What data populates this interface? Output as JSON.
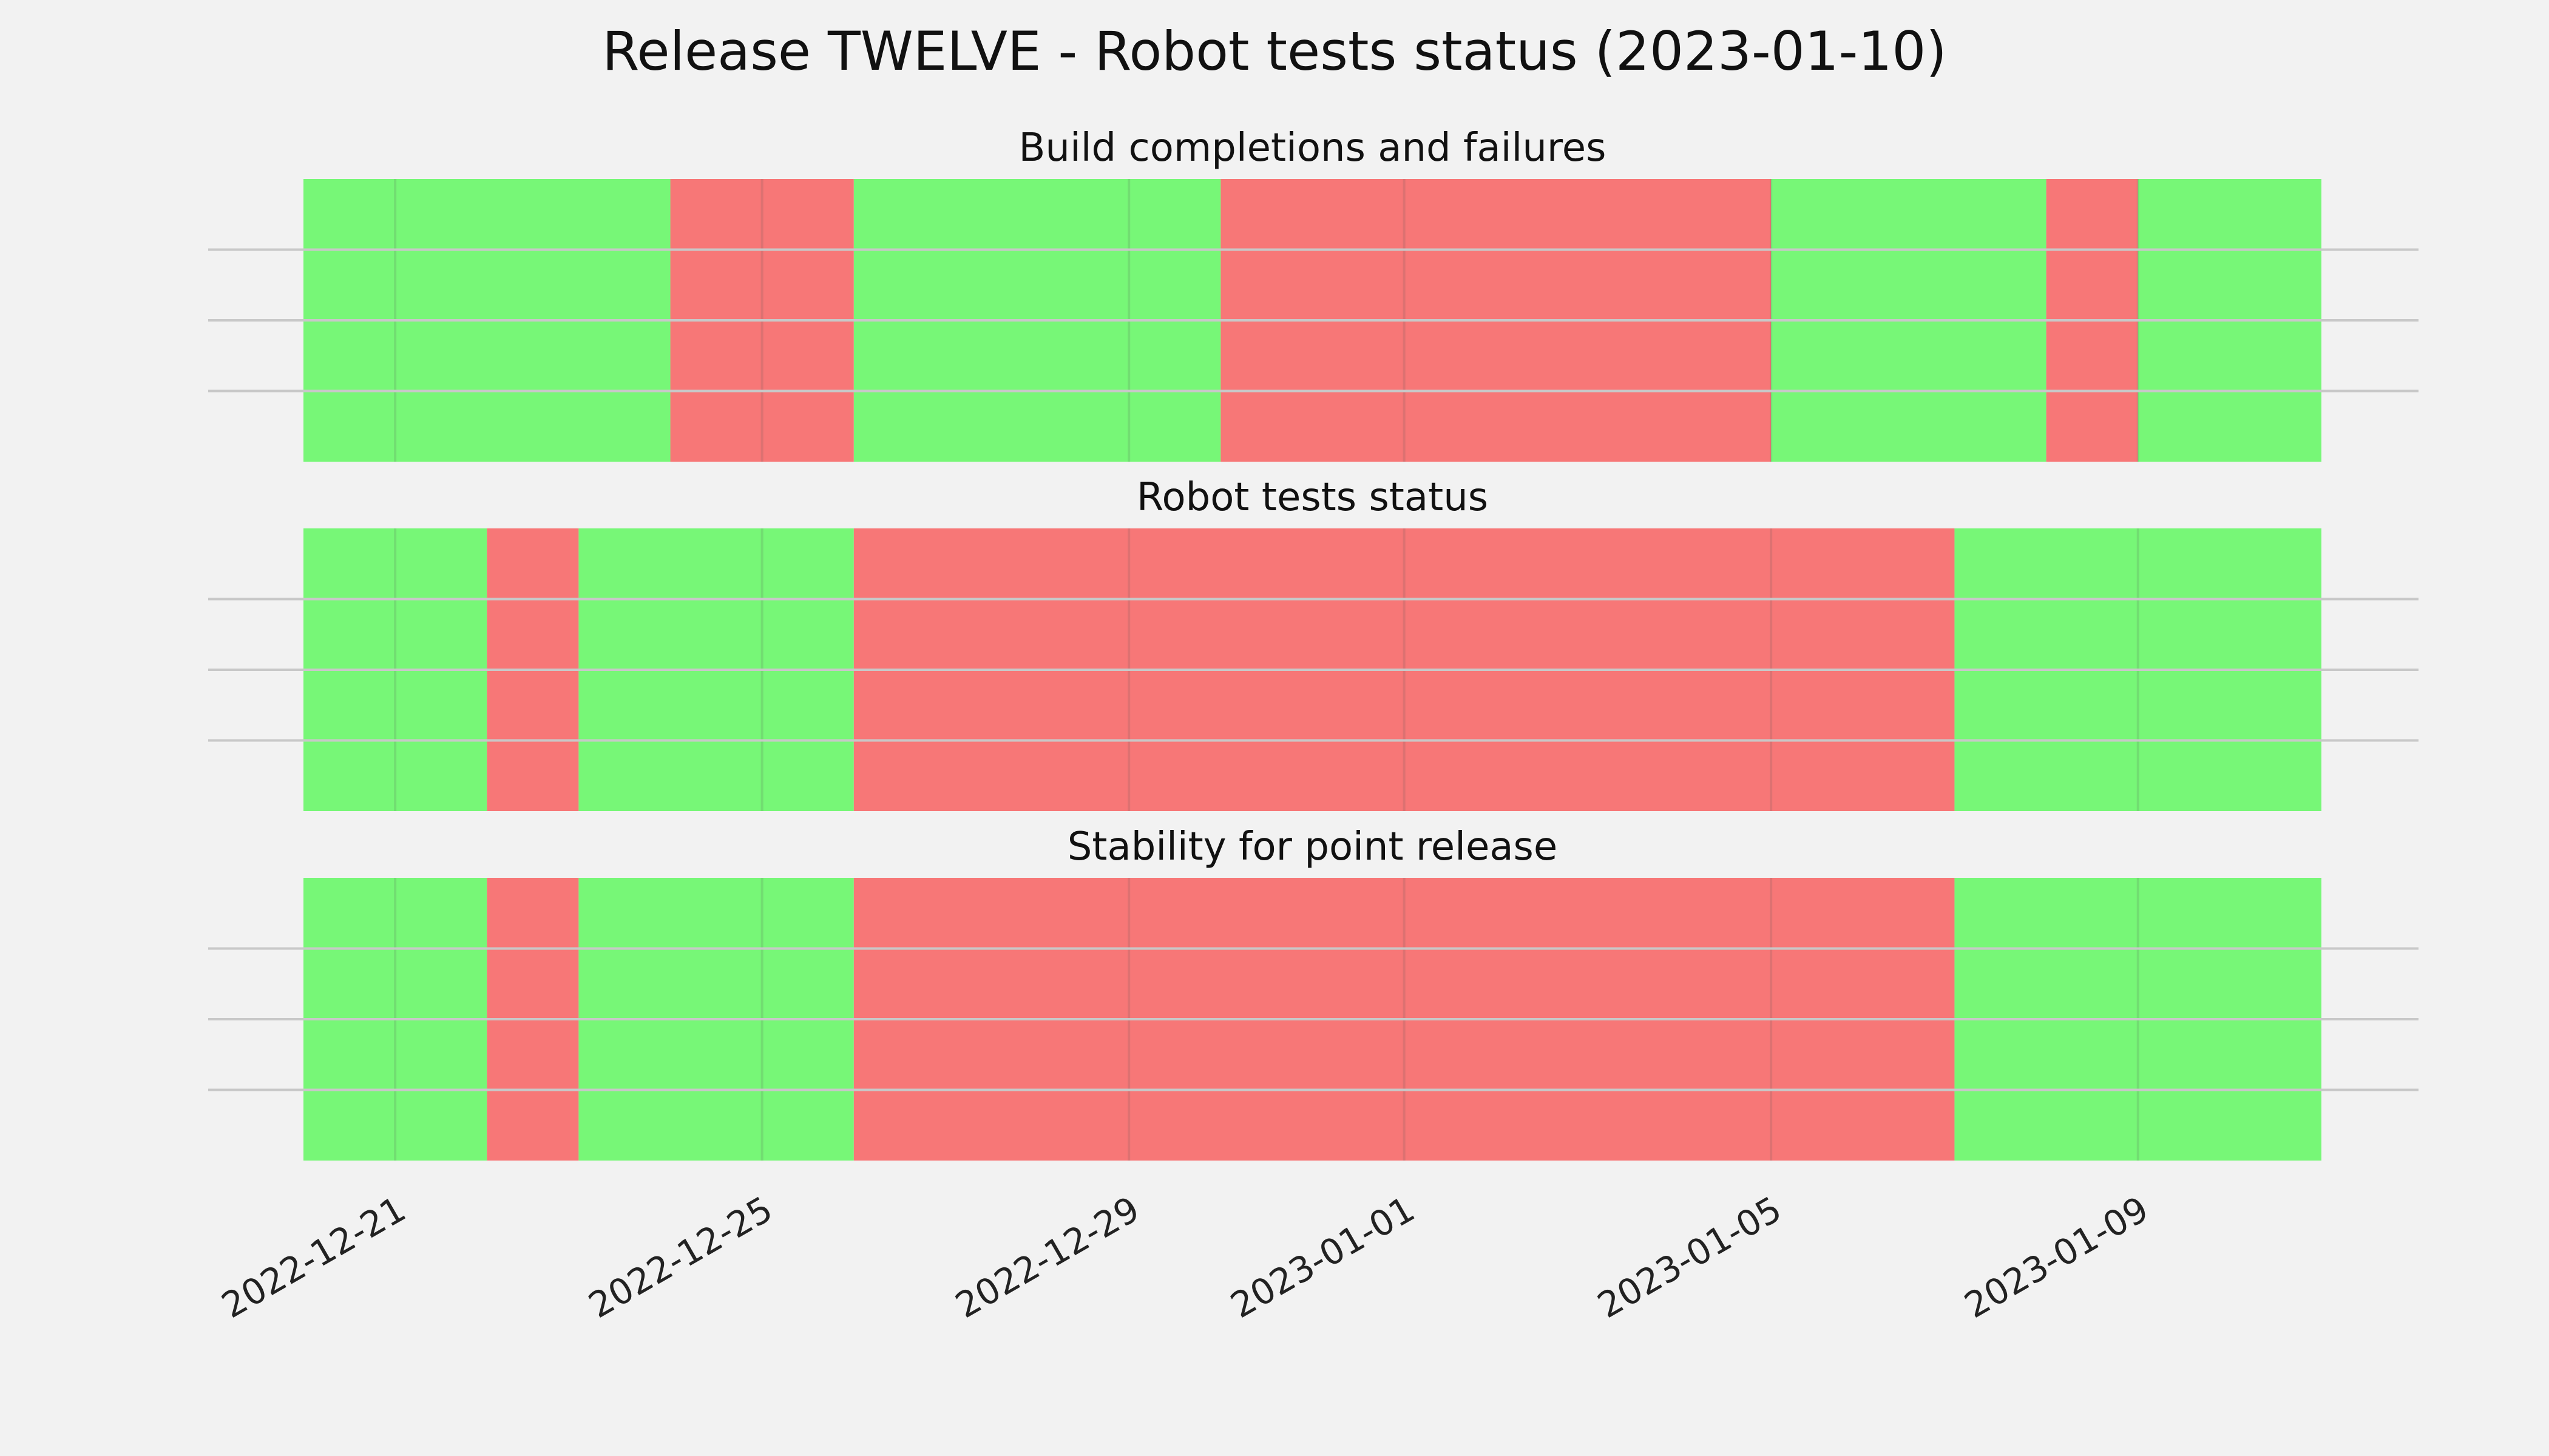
{
  "title": "Release TWELVE - Robot tests status (2023-01-10)",
  "colors": {
    "pass": "#77f777",
    "fail": "#f77777",
    "background": "#f2f2f2",
    "grid": "#c8c8c8"
  },
  "chart_data": [
    {
      "type": "timeline",
      "title": "Build completions and failures",
      "xlim": [
        "2022-12-20",
        "2023-01-11"
      ],
      "grid": true,
      "segments": [
        {
          "start": "2022-12-20",
          "end": "2022-12-24",
          "status": "pass"
        },
        {
          "start": "2022-12-24",
          "end": "2022-12-26",
          "status": "fail"
        },
        {
          "start": "2022-12-26",
          "end": "2022-12-30",
          "status": "pass"
        },
        {
          "start": "2022-12-30",
          "end": "2023-01-05",
          "status": "fail"
        },
        {
          "start": "2023-01-05",
          "end": "2023-01-08",
          "status": "pass"
        },
        {
          "start": "2023-01-08",
          "end": "2023-01-09",
          "status": "fail"
        },
        {
          "start": "2023-01-09",
          "end": "2023-01-11",
          "status": "pass"
        }
      ]
    },
    {
      "type": "timeline",
      "title": "Robot tests status",
      "xlim": [
        "2022-12-20",
        "2023-01-11"
      ],
      "grid": true,
      "segments": [
        {
          "start": "2022-12-20",
          "end": "2022-12-22",
          "status": "pass"
        },
        {
          "start": "2022-12-22",
          "end": "2022-12-23",
          "status": "fail"
        },
        {
          "start": "2022-12-23",
          "end": "2022-12-26",
          "status": "pass"
        },
        {
          "start": "2022-12-26",
          "end": "2023-01-07",
          "status": "fail"
        },
        {
          "start": "2023-01-07",
          "end": "2023-01-11",
          "status": "pass"
        }
      ]
    },
    {
      "type": "timeline",
      "title": "Stability for point release",
      "xlim": [
        "2022-12-20",
        "2023-01-11"
      ],
      "grid": true,
      "segments": [
        {
          "start": "2022-12-20",
          "end": "2022-12-22",
          "status": "pass"
        },
        {
          "start": "2022-12-22",
          "end": "2022-12-23",
          "status": "fail"
        },
        {
          "start": "2022-12-23",
          "end": "2022-12-26",
          "status": "pass"
        },
        {
          "start": "2022-12-26",
          "end": "2023-01-07",
          "status": "fail"
        },
        {
          "start": "2023-01-07",
          "end": "2023-01-11",
          "status": "pass"
        }
      ]
    }
  ],
  "x_ticks": [
    "2022-12-21",
    "2022-12-25",
    "2022-12-29",
    "2023-01-01",
    "2023-01-05",
    "2023-01-09"
  ]
}
